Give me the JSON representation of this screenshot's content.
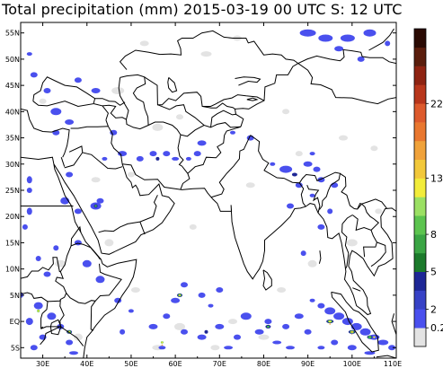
{
  "title": "Total precipitation (mm) 2015-03-19 00 UTC S: 12 UTC",
  "map": {
    "region": "South Asia / Middle East",
    "lon_range": [
      25,
      110
    ],
    "lat_range": [
      -7,
      57
    ],
    "lon_ticks": [
      "30E",
      "40E",
      "50E",
      "60E",
      "70E",
      "80E",
      "90E",
      "100E",
      "110E"
    ],
    "lat_ticks": [
      "55N",
      "50N",
      "45N",
      "40N",
      "35N",
      "30N",
      "25N",
      "20N",
      "15N",
      "10N",
      "5N",
      "EQ",
      "5S"
    ],
    "colors": {
      "light": "#e3e3e3",
      "blue": "#4a50ee",
      "navy": "#1e2796",
      "dark_green": "#1b7a2b",
      "green": "#40b649",
      "light_green": "#88da5e",
      "yellow": "#f2ec3a",
      "orange": "#f0a23a",
      "red": "#dd5a2c",
      "dark_red": "#9c2a14",
      "brown": "#5a1d0c"
    }
  },
  "colorbar": {
    "labels": [
      "0.2",
      "2",
      "5",
      "8",
      "13",
      "22"
    ],
    "colors": [
      "#e3e3e3",
      "#4a50ee",
      "#3742c6",
      "#1e2796",
      "#1b7a2b",
      "#3aa544",
      "#5cc44f",
      "#9be063",
      "#f2ec3a",
      "#f2c83a",
      "#f0a23a",
      "#e9772f",
      "#dd5a2c",
      "#b8361b",
      "#8e2311",
      "#5a1d0c",
      "#2a0a03"
    ]
  }
}
